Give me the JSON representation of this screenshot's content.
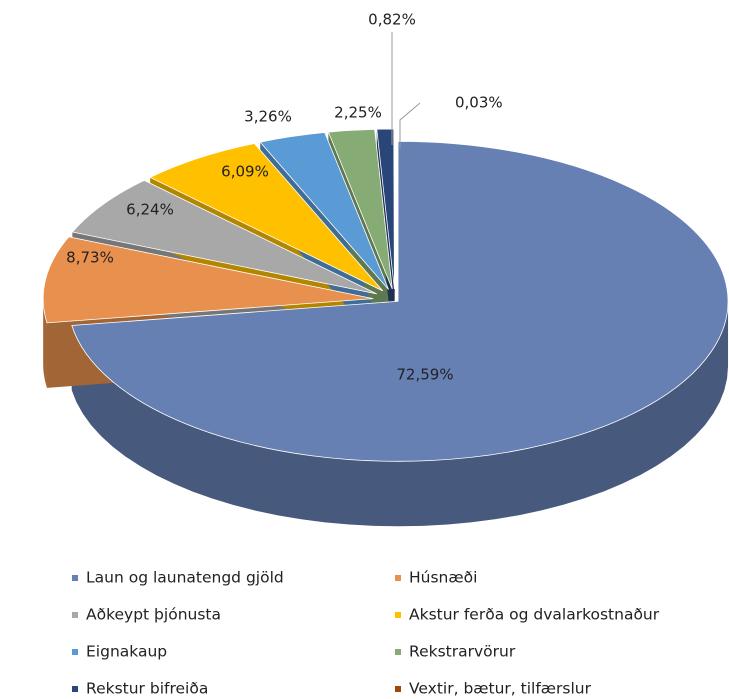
{
  "chart_data": {
    "type": "pie3d",
    "categories": [
      "Laun og launatengd gjöld",
      "Húsnæði",
      "Aðkeypt þjónusta",
      "Akstur ferða og dvalarkostnaður",
      "Eignakaup",
      "Rekstrarvörur",
      "Rekstur bifreiða",
      "Vextir, bætur, tilfærslur"
    ],
    "values": [
      72.59,
      8.73,
      6.24,
      6.09,
      3.26,
      2.25,
      0.82,
      0.03
    ],
    "value_labels": [
      "72,59%",
      "8,73%",
      "6,24%",
      "6,09%",
      "3,26%",
      "2,25%",
      "0,82%",
      "0,03%"
    ],
    "colors": [
      "#6680b3",
      "#e8904d",
      "#a8a8a8",
      "#ffc000",
      "#5b9bd5",
      "#86ab74",
      "#2a4679",
      "#9e480e"
    ],
    "legend": "bottom"
  }
}
